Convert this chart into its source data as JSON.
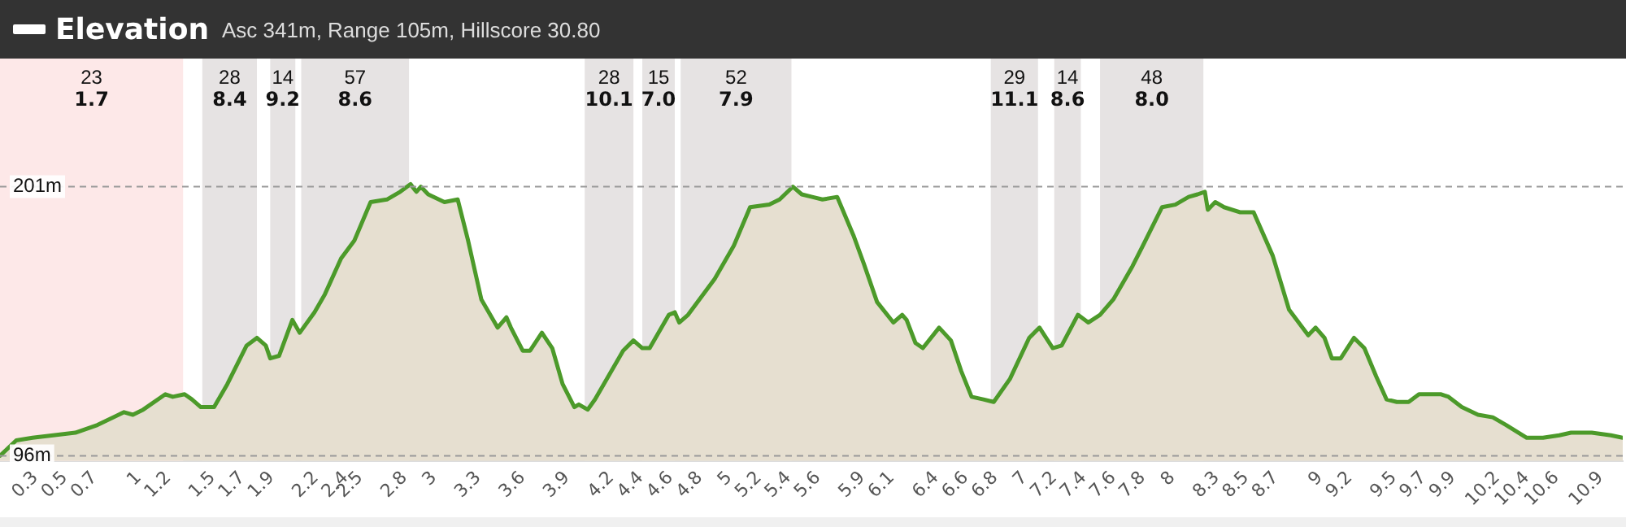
{
  "chart_data": {
    "type": "area",
    "title": "Elevation",
    "subtitle": "Asc 341m, Range 105m, Hillscore 30.80",
    "x": [
      0.06,
      0.17,
      0.28,
      0.42,
      0.57,
      0.72,
      0.9,
      0.96,
      1.03,
      1.18,
      1.23,
      1.31,
      1.36,
      1.42,
      1.51,
      1.6,
      1.73,
      1.8,
      1.86,
      1.89,
      1.95,
      2.04,
      2.09,
      2.19,
      2.26,
      2.37,
      2.46,
      2.57,
      2.68,
      2.77,
      2.84,
      2.88,
      2.91,
      2.96,
      3.07,
      3.16,
      3.23,
      3.32,
      3.43,
      3.49,
      3.52,
      3.6,
      3.65,
      3.73,
      3.8,
      3.87,
      3.95,
      3.98,
      4.04,
      4.09,
      4.28,
      4.35,
      4.41,
      4.46,
      4.59,
      4.63,
      4.66,
      4.72,
      4.81,
      4.9,
      5.03,
      5.14,
      5.27,
      5.34,
      5.43,
      5.49,
      5.56,
      5.63,
      5.73,
      5.84,
      5.91,
      6.0,
      6.11,
      6.17,
      6.2,
      6.26,
      6.31,
      6.42,
      6.5,
      6.57,
      6.64,
      6.72,
      6.79,
      6.9,
      7.03,
      7.1,
      7.19,
      7.25,
      7.36,
      7.43,
      7.51,
      7.6,
      7.73,
      7.8,
      7.93,
      8.02,
      8.11,
      8.17,
      8.22,
      8.24,
      8.29,
      8.35,
      8.46,
      8.55,
      8.68,
      8.79,
      8.92,
      8.97,
      9.03,
      9.08,
      9.14,
      9.23,
      9.3,
      9.38,
      9.45,
      9.52,
      9.6,
      9.67,
      9.82,
      9.87,
      9.96,
      10.07,
      10.17,
      10.26,
      10.4,
      10.51,
      10.62,
      10.7,
      10.84,
      10.97,
      11.05
    ],
    "series": [
      {
        "color": "#4c9a2a",
        "values": [
          96,
          102,
          103,
          104,
          105,
          108,
          113,
          112,
          114,
          120,
          119,
          120,
          118,
          115,
          115,
          124,
          139,
          142,
          139,
          134,
          135,
          149,
          144,
          152,
          159,
          173,
          180,
          195,
          196,
          199,
          202,
          199,
          201,
          198,
          195,
          196,
          180,
          157,
          146,
          150,
          146,
          137,
          137,
          144,
          138,
          124,
          115,
          116,
          114,
          118,
          137,
          141,
          138,
          138,
          151,
          152,
          148,
          151,
          158,
          165,
          178,
          193,
          194,
          196,
          201,
          198,
          197,
          196,
          197,
          182,
          171,
          156,
          148,
          151,
          149,
          140,
          138,
          146,
          141,
          129,
          119,
          118,
          117,
          126,
          142,
          146,
          138,
          139,
          151,
          148,
          151,
          157,
          170,
          178,
          193,
          194,
          197,
          198,
          199,
          192,
          195,
          193,
          191,
          191,
          174,
          153,
          143,
          146,
          142,
          134,
          134,
          142,
          138,
          127,
          118,
          117,
          117,
          120,
          120,
          119,
          115,
          112,
          111,
          108,
          103,
          103,
          104,
          105,
          105,
          104,
          103
        ]
      }
    ],
    "xlim": [
      0.06,
      11.05
    ],
    "xticks": [
      0.3,
      0.5,
      0.7,
      1,
      1.2,
      1.5,
      1.7,
      1.9,
      2.2,
      2.4,
      2.5,
      2.8,
      3,
      3.3,
      3.6,
      3.9,
      4.2,
      4.4,
      4.6,
      4.8,
      5,
      5.2,
      5.4,
      5.6,
      5.9,
      6.1,
      6.4,
      6.6,
      6.8,
      7,
      7.2,
      7.4,
      7.6,
      7.8,
      8,
      8.3,
      8.5,
      8.7,
      9,
      9.2,
      9.5,
      9.7,
      9.9,
      10.2,
      10.4,
      10.6,
      10.9
    ],
    "ylim": [
      94,
      251
    ],
    "yticks": [
      {
        "value": 96,
        "label": "96m"
      },
      {
        "value": 201,
        "label": "201m"
      }
    ],
    "marker": "none",
    "legend": false,
    "ref_lines": [
      {
        "axis": "y",
        "value": 201,
        "color": "#999999",
        "line_style": "dashed"
      },
      {
        "axis": "y",
        "value": 96,
        "color": "#999999",
        "line_style": "dashed"
      }
    ],
    "bands": [
      {
        "axis": "x",
        "from": 0.06,
        "to": 1.3,
        "label": "23\n1.7",
        "color": "#fde8e8"
      },
      {
        "axis": "x",
        "from": 1.43,
        "to": 1.8,
        "label": "28\n8.4",
        "color": "#e6e3e3"
      },
      {
        "axis": "x",
        "from": 1.89,
        "to": 2.06,
        "label": "14\n9.2",
        "color": "#e6e3e3"
      },
      {
        "axis": "x",
        "from": 2.1,
        "to": 2.83,
        "label": "57\n8.6",
        "color": "#e6e3e3"
      },
      {
        "axis": "x",
        "from": 4.02,
        "to": 4.35,
        "label": "28\n10.1",
        "color": "#e6e3e3"
      },
      {
        "axis": "x",
        "from": 4.41,
        "to": 4.63,
        "label": "15\n7.0",
        "color": "#e6e3e3"
      },
      {
        "axis": "x",
        "from": 4.67,
        "to": 5.42,
        "label": "52\n7.9",
        "color": "#e6e3e3"
      },
      {
        "axis": "x",
        "from": 6.77,
        "to": 7.09,
        "label": "29\n11.1",
        "color": "#e6e3e3"
      },
      {
        "axis": "x",
        "from": 7.2,
        "to": 7.38,
        "label": "14\n8.6",
        "color": "#e6e3e3"
      },
      {
        "axis": "x",
        "from": 7.51,
        "to": 8.21,
        "label": "48\n8.0",
        "color": "#e6e3e3"
      }
    ]
  }
}
